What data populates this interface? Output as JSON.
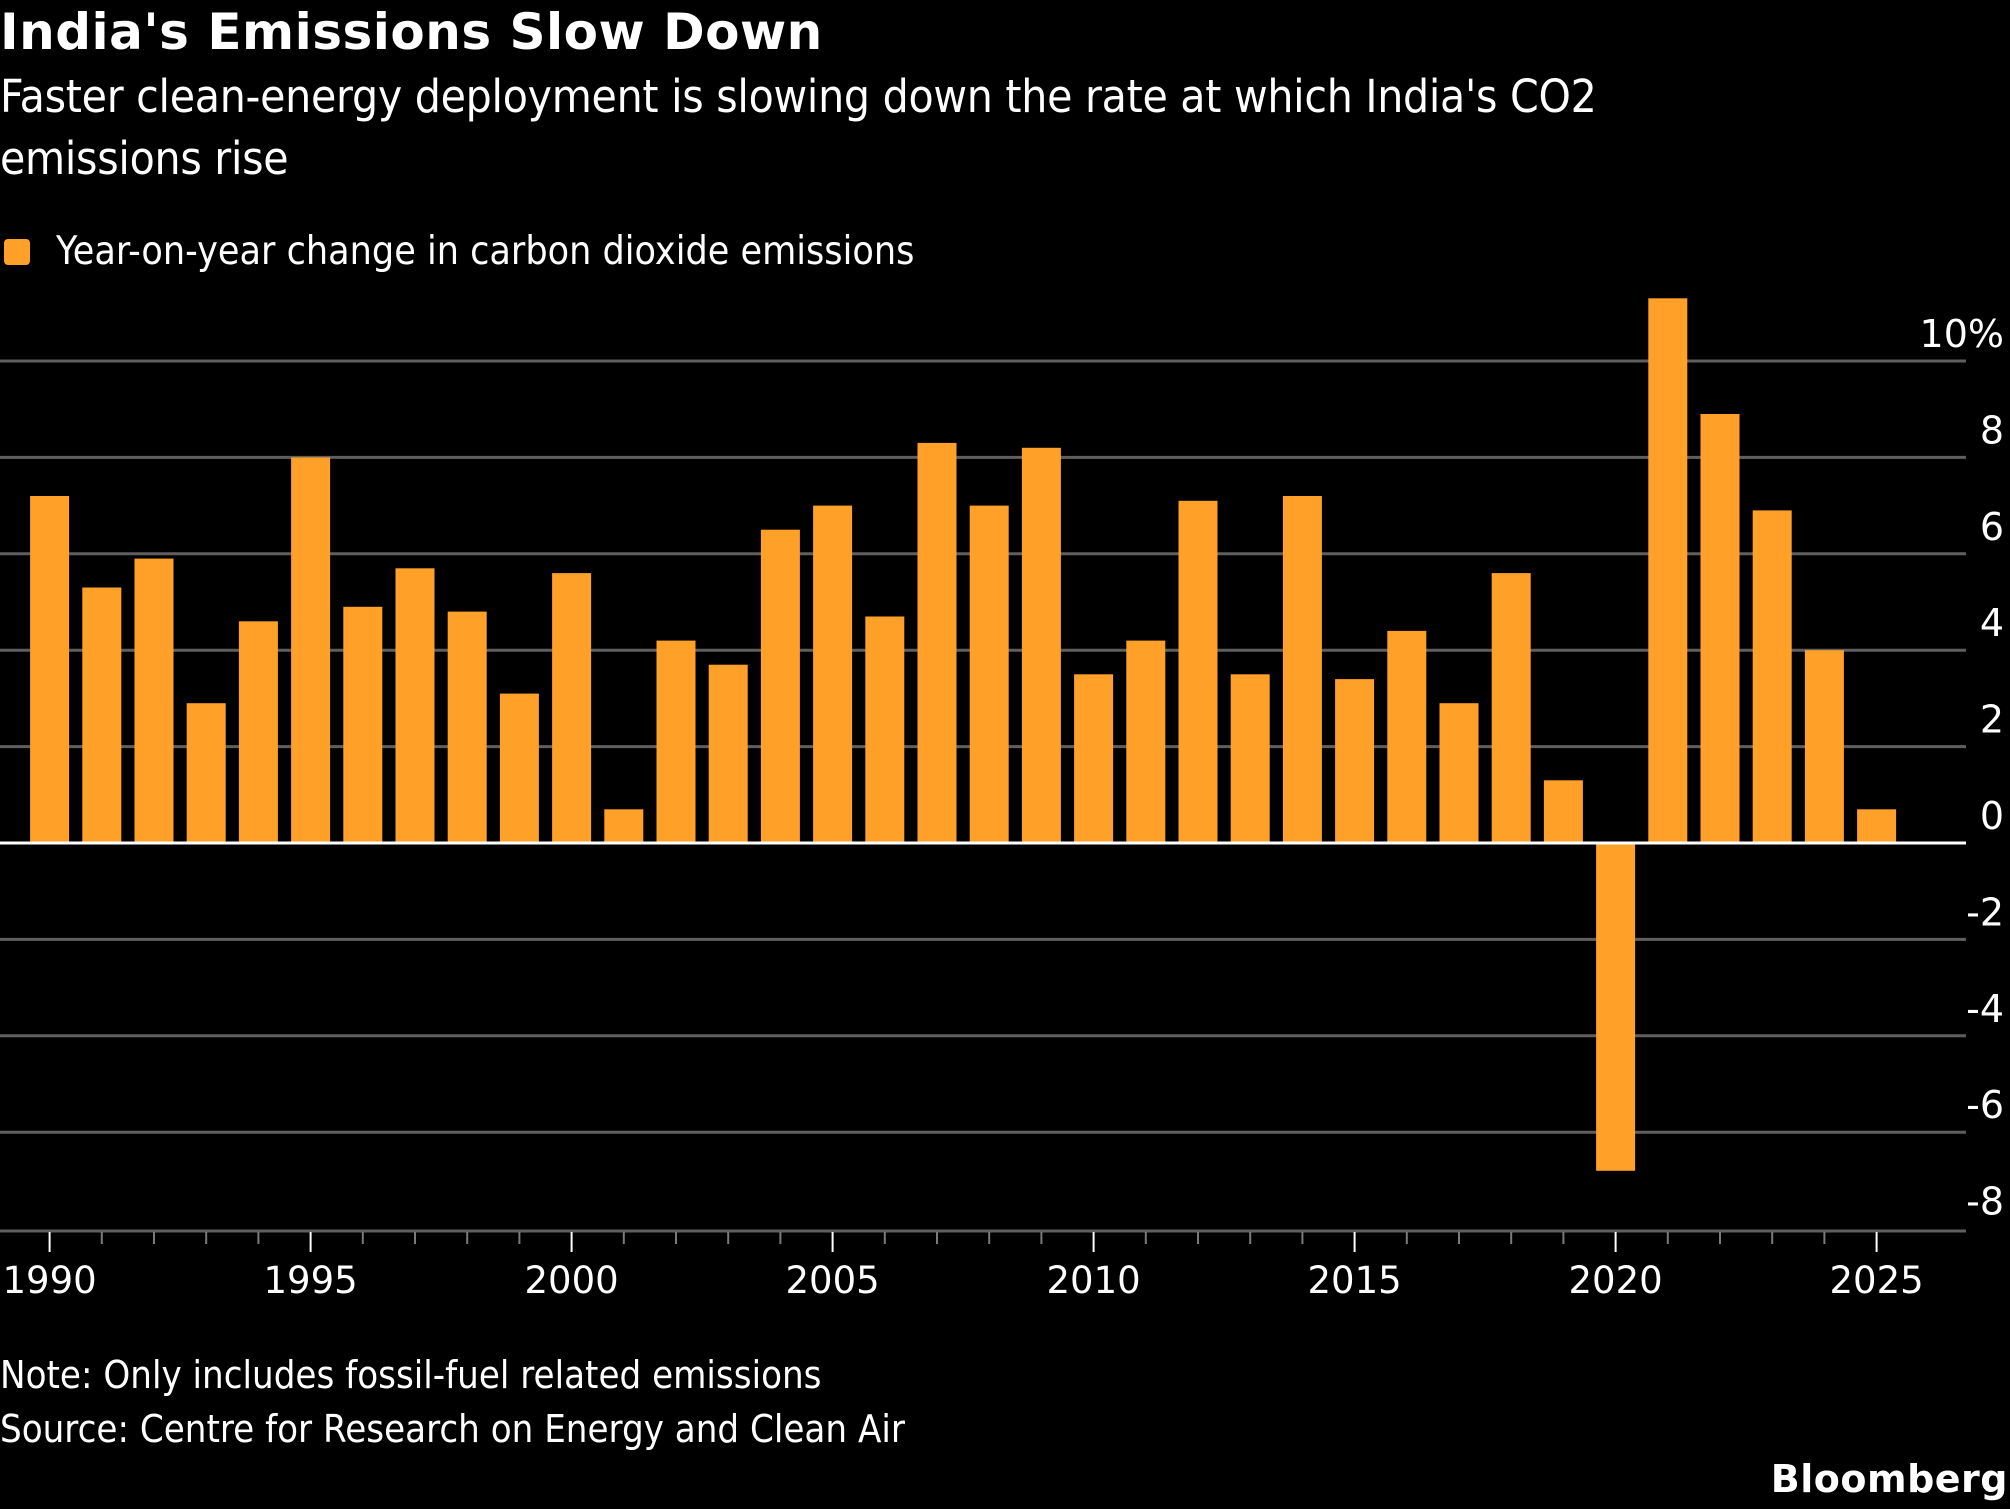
{
  "header": {
    "title": "India's Emissions Slow Down",
    "subtitle": "Faster clean-energy deployment is slowing down the rate at which India's CO2 emissions rise"
  },
  "legend": {
    "label": "Year-on-year change in carbon dioxide emissions",
    "color": "#ffa028"
  },
  "footer": {
    "note": "Note: Only includes fossil-fuel related emissions",
    "source": "Source: Centre for Research on Energy and Clean Air",
    "brand": "Bloomberg"
  },
  "colors": {
    "background": "#000000",
    "bar": "#ffa028",
    "grid": "#5f5f5f",
    "zero_line": "#ffffff",
    "text": "#ffffff"
  },
  "chart_data": {
    "type": "bar",
    "title": "India's Emissions Slow Down",
    "subtitle": "Faster clean-energy deployment is slowing down the rate at which India's CO2 emissions rise",
    "xlabel": "",
    "ylabel": "",
    "y_unit_suffix": "%",
    "ylim": [
      -8,
      11.5
    ],
    "yticks": [
      10,
      8,
      6,
      4,
      2,
      0,
      -2,
      -4,
      -6,
      -8
    ],
    "ytick_labels": [
      "10%",
      "8",
      "6",
      "4",
      "2",
      "0",
      "-2",
      "-4",
      "-6",
      "-8"
    ],
    "y_axis_side": "right",
    "grid": true,
    "legend_position": "top-left",
    "xticks_major": [
      1990,
      1995,
      2000,
      2005,
      2010,
      2015,
      2020,
      2025
    ],
    "xtick_labels": [
      "1990",
      "1995",
      "2000",
      "2005",
      "2010",
      "2015",
      "2020",
      "2025"
    ],
    "categories": [
      1990,
      1991,
      1992,
      1993,
      1994,
      1995,
      1996,
      1997,
      1998,
      1999,
      2000,
      2001,
      2002,
      2003,
      2004,
      2005,
      2006,
      2007,
      2008,
      2009,
      2010,
      2011,
      2012,
      2013,
      2014,
      2015,
      2016,
      2017,
      2018,
      2019,
      2020,
      2021,
      2022,
      2023,
      2024,
      2025
    ],
    "series": [
      {
        "name": "Year-on-year change in carbon dioxide emissions",
        "values": [
          7.2,
          5.3,
          5.9,
          2.9,
          4.6,
          8.0,
          4.9,
          5.7,
          4.8,
          3.1,
          5.6,
          0.7,
          4.2,
          3.7,
          6.5,
          7.0,
          4.7,
          8.3,
          7.0,
          8.2,
          3.5,
          4.2,
          7.1,
          3.5,
          7.2,
          3.4,
          4.4,
          2.9,
          5.6,
          1.3,
          -6.8,
          11.3,
          8.9,
          6.9,
          4.0,
          0.7
        ]
      }
    ]
  }
}
